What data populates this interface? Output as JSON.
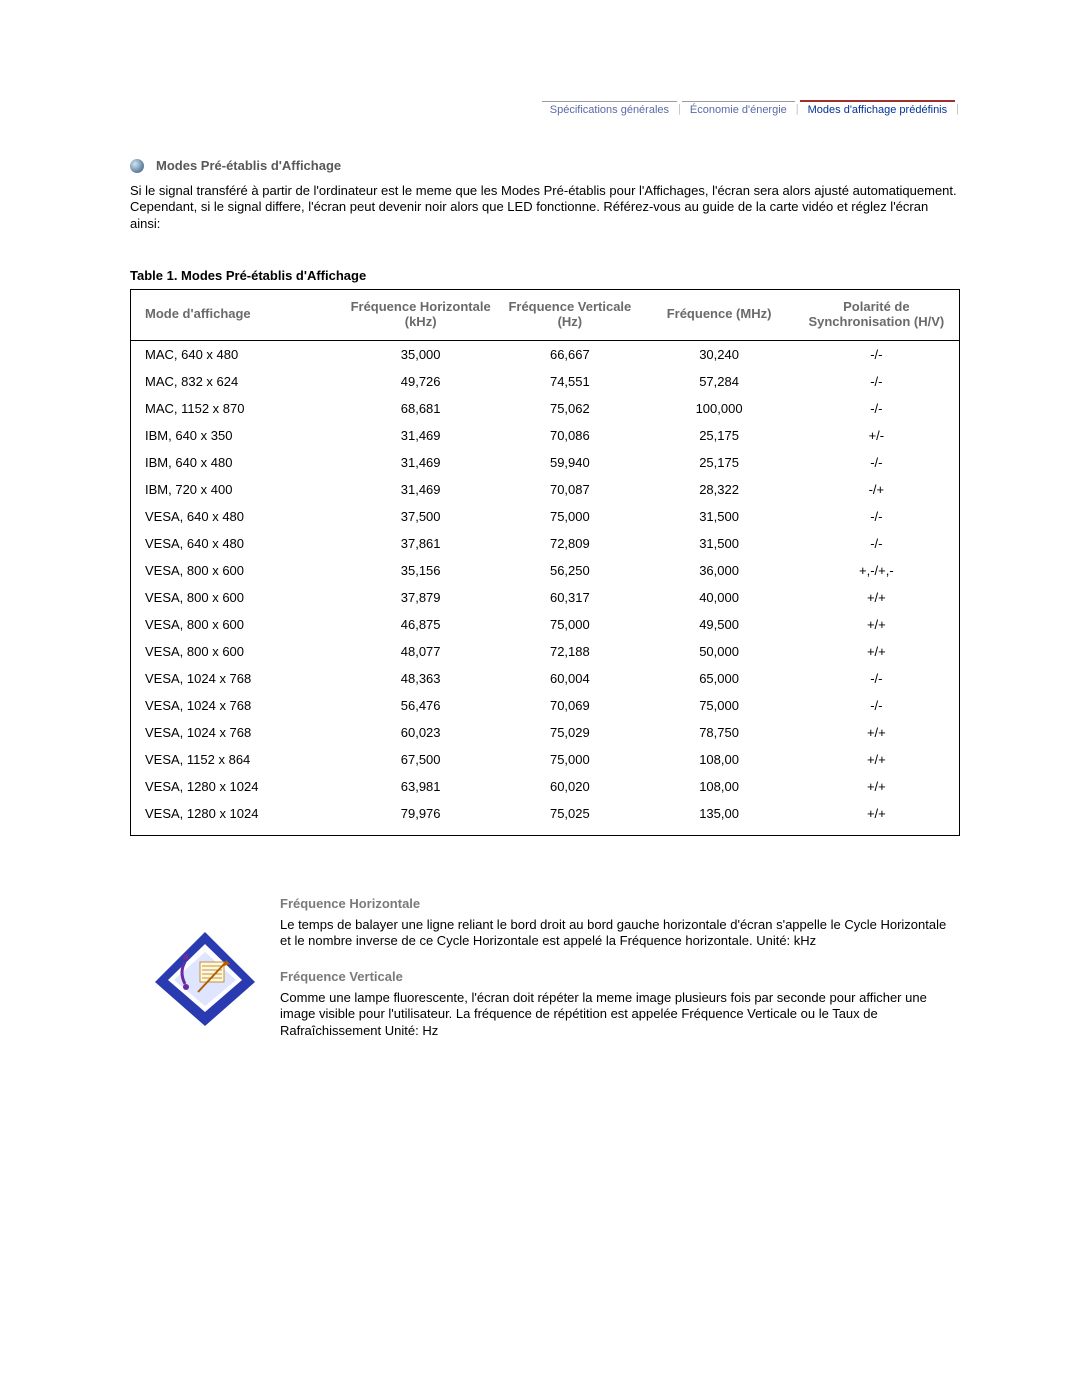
{
  "nav": {
    "item1": "Spécifications générales",
    "item2": "Économie d'énergie",
    "item3_active": "Modes d'affichage prédéfinis"
  },
  "section_title": "Modes Pré-établis d'Affichage",
  "intro": "Si le signal transféré à partir de l'ordinateur est le meme que les Modes Pré-établis pour l'Affichages, l'écran sera alors ajusté automatiquement. Cependant, si le signal differe, l'écran peut devenir noir alors que LED fonctionne. Référez-vous au guide de la carte vidéo et réglez l'écran ainsi:",
  "table_caption": "Table 1. Modes Pré-établis d'Affichage",
  "columns": {
    "c0": "Mode d'affichage",
    "c1": "Fréquence Horizontale (kHz)",
    "c2": "Fréquence Verticale (Hz)",
    "c3": "Fréquence (MHz)",
    "c4": "Polarité de Synchronisation (H/V)"
  },
  "rows": [
    {
      "mode": "MAC, 640 x 480",
      "hk": "35,000",
      "vz": "66,667",
      "mhz": "30,240",
      "pol": "-/-"
    },
    {
      "mode": "MAC, 832 x 624",
      "hk": "49,726",
      "vz": "74,551",
      "mhz": "57,284",
      "pol": "-/-"
    },
    {
      "mode": "MAC, 1152 x 870",
      "hk": "68,681",
      "vz": "75,062",
      "mhz": "100,000",
      "pol": "-/-"
    },
    {
      "mode": "IBM, 640 x 350",
      "hk": "31,469",
      "vz": "70,086",
      "mhz": "25,175",
      "pol": "+/-"
    },
    {
      "mode": "IBM, 640 x 480",
      "hk": "31,469",
      "vz": "59,940",
      "mhz": "25,175",
      "pol": "-/-"
    },
    {
      "mode": "IBM, 720 x 400",
      "hk": "31,469",
      "vz": "70,087",
      "mhz": "28,322",
      "pol": "-/+"
    },
    {
      "mode": "VESA, 640 x 480",
      "hk": "37,500",
      "vz": "75,000",
      "mhz": "31,500",
      "pol": "-/-"
    },
    {
      "mode": "VESA, 640 x 480",
      "hk": "37,861",
      "vz": "72,809",
      "mhz": "31,500",
      "pol": "-/-"
    },
    {
      "mode": "VESA, 800 x 600",
      "hk": "35,156",
      "vz": "56,250",
      "mhz": "36,000",
      "pol": "+,-/+,-"
    },
    {
      "mode": "VESA, 800 x 600",
      "hk": "37,879",
      "vz": "60,317",
      "mhz": "40,000",
      "pol": "+/+"
    },
    {
      "mode": "VESA, 800 x 600",
      "hk": "46,875",
      "vz": "75,000",
      "mhz": "49,500",
      "pol": "+/+"
    },
    {
      "mode": "VESA, 800 x 600",
      "hk": "48,077",
      "vz": "72,188",
      "mhz": "50,000",
      "pol": "+/+"
    },
    {
      "mode": "VESA, 1024 x 768",
      "hk": "48,363",
      "vz": "60,004",
      "mhz": "65,000",
      "pol": "-/-"
    },
    {
      "mode": "VESA, 1024 x 768",
      "hk": "56,476",
      "vz": "70,069",
      "mhz": "75,000",
      "pol": "-/-"
    },
    {
      "mode": "VESA, 1024 x 768",
      "hk": "60,023",
      "vz": "75,029",
      "mhz": "78,750",
      "pol": "+/+"
    },
    {
      "mode": "VESA, 1152 x 864",
      "hk": "67,500",
      "vz": "75,000",
      "mhz": "108,00",
      "pol": "+/+"
    },
    {
      "mode": "VESA, 1280 x 1024",
      "hk": "63,981",
      "vz": "60,020",
      "mhz": "108,00",
      "pol": "+/+"
    },
    {
      "mode": "VESA, 1280 x 1024",
      "hk": "79,976",
      "vz": "75,025",
      "mhz": "135,00",
      "pol": "+/+"
    }
  ],
  "defs": {
    "t1": "Fréquence Horizontale",
    "b1": "Le temps de balayer une ligne reliant le bord droit au bord gauche horizontale d'écran s'appelle le Cycle Horizontale et le nombre inverse de ce Cycle Horizontale est appelé la Fréquence horizontale. Unité: kHz",
    "t2": "Fréquence Verticale",
    "b2": "Comme une lampe fluorescente, l'écran doit répéter la meme image plusieurs fois par seconde pour afficher une image visible pour l'utilisateur. La fréquence de répétition est appelée Fréquence Verticale ou le Taux de Rafraîchissement Unité: Hz"
  }
}
